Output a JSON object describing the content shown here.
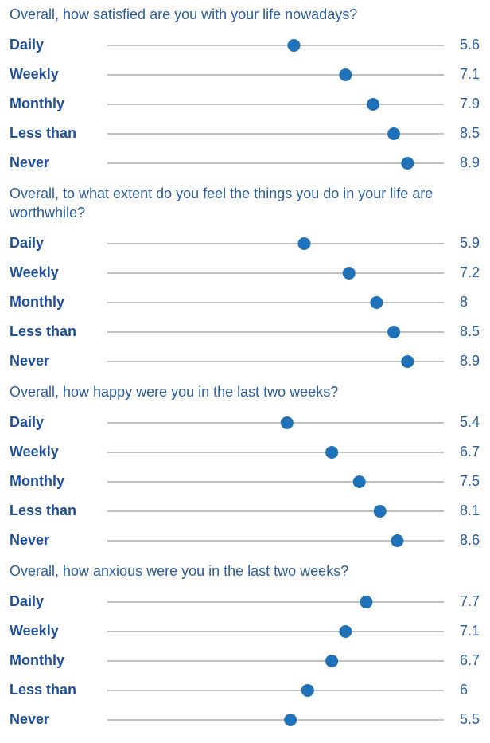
{
  "chart_data": [
    {
      "type": "dot",
      "title": "Overall, how satisfied are you with your life nowadays?",
      "categories": [
        "Daily",
        "Weekly",
        "Monthly",
        "Less than",
        "Never"
      ],
      "values": [
        5.6,
        7.1,
        7.9,
        8.5,
        8.9
      ],
      "xlim": [
        0,
        10
      ],
      "color": "#1f72b8"
    },
    {
      "type": "dot",
      "title": "Overall, to what extent do you feel the things you do in your life are worthwhile?",
      "categories": [
        "Daily",
        "Weekly",
        "Monthly",
        "Less than",
        "Never"
      ],
      "values": [
        5.9,
        7.2,
        8,
        8.5,
        8.9
      ],
      "xlim": [
        0,
        10
      ],
      "color": "#1f72b8"
    },
    {
      "type": "dot",
      "title": "Overall, how happy were you in the last two weeks?",
      "categories": [
        "Daily",
        "Weekly",
        "Monthly",
        "Less than",
        "Never"
      ],
      "values": [
        5.4,
        6.7,
        7.5,
        8.1,
        8.6
      ],
      "xlim": [
        0,
        10
      ],
      "color": "#1f72b8"
    },
    {
      "type": "dot",
      "title": "Overall, how anxious were you in the last two weeks?",
      "categories": [
        "Daily",
        "Weekly",
        "Monthly",
        "Less than",
        "Never"
      ],
      "values": [
        7.7,
        7.1,
        6.7,
        6,
        5.5
      ],
      "xlim": [
        0,
        10
      ],
      "color": "#1f72b8"
    }
  ]
}
